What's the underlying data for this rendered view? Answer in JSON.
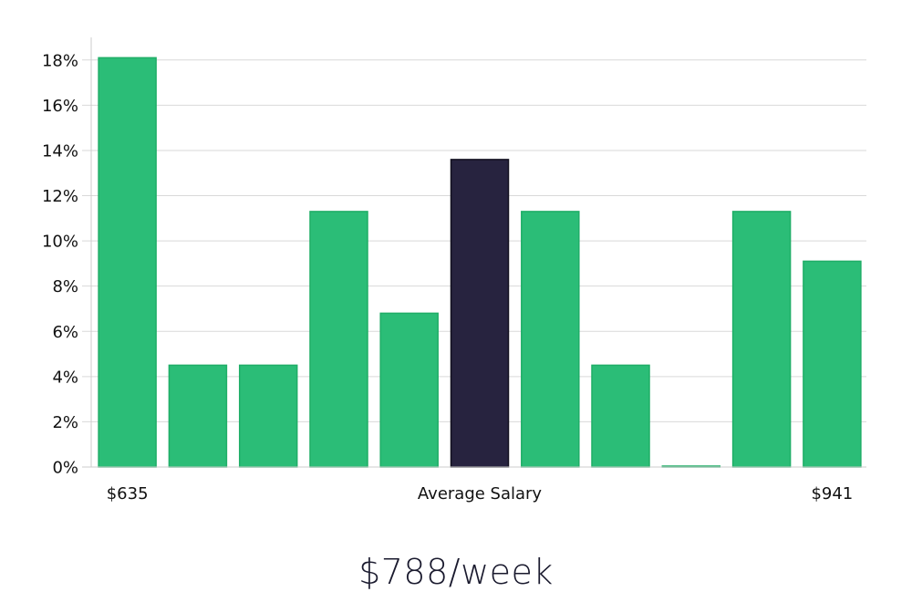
{
  "chart_data": {
    "type": "bar",
    "title": "",
    "xlabel": "Average Salary",
    "ylabel": "",
    "ylim": [
      0,
      19
    ],
    "yticks": [
      0,
      2,
      4,
      6,
      8,
      10,
      12,
      14,
      16,
      18
    ],
    "ytick_format": "%",
    "grid": true,
    "x_start_label": "$635",
    "x_end_label": "$941",
    "values": [
      18.1,
      4.5,
      4.5,
      11.3,
      6.8,
      13.6,
      11.3,
      4.5,
      0.0,
      11.3,
      9.1
    ],
    "highlight_index": 5,
    "colors": {
      "bar": "#2bbd77",
      "bar_stroke": "#1fae67",
      "highlight": "#27233f",
      "highlight_stroke": "#12101f",
      "grid": "#d9d9d9",
      "axis": "#cccccc"
    }
  },
  "summary": {
    "value": "$788/week"
  }
}
